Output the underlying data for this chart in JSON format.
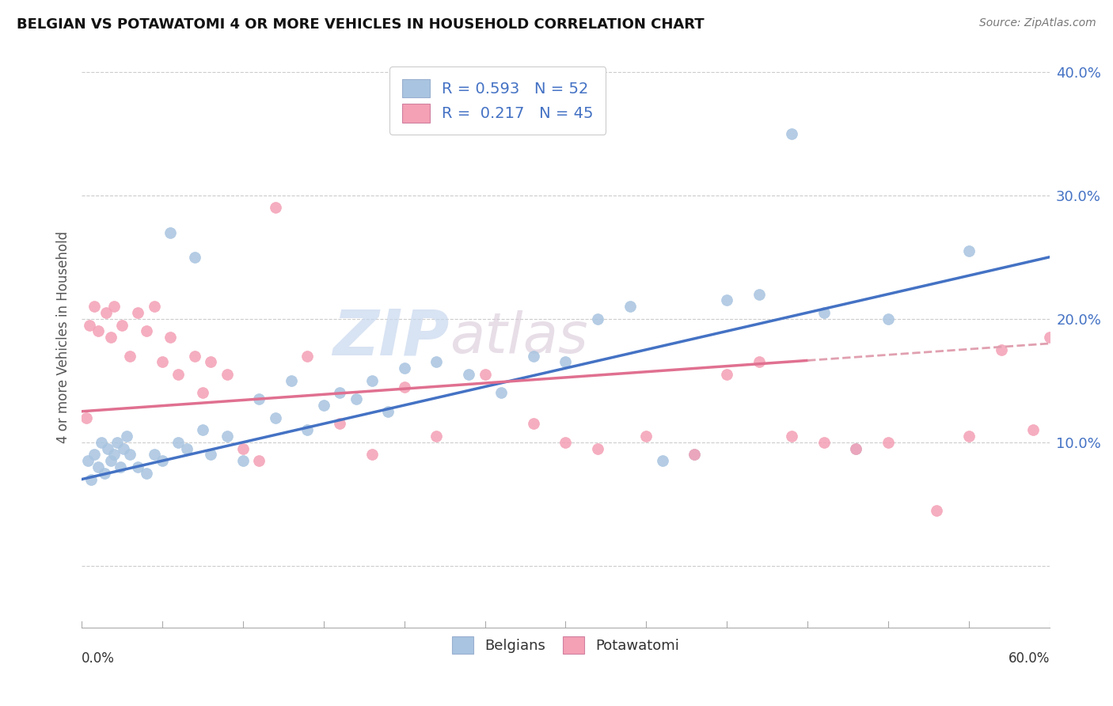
{
  "title": "BELGIAN VS POTAWATOMI 4 OR MORE VEHICLES IN HOUSEHOLD CORRELATION CHART",
  "source_text": "Source: ZipAtlas.com",
  "ylabel": "4 or more Vehicles in Household",
  "watermark_main": "ZIP",
  "watermark_sub": "atlas",
  "xlim": [
    0.0,
    60.0
  ],
  "ylim": [
    -5.0,
    42.0
  ],
  "ytick_vals": [
    0,
    10,
    20,
    30,
    40
  ],
  "ytick_labels": [
    "",
    "10.0%",
    "20.0%",
    "30.0%",
    "40.0%"
  ],
  "legend_line1": "R = 0.593   N = 52",
  "legend_line2": "R =  0.217   N = 45",
  "belgian_color": "#a8c4e0",
  "potawatomi_color": "#f4a0b5",
  "belgian_line_color": "#4472c4",
  "potawatomi_line_color": "#e07090",
  "potawatomi_dash_color": "#e0a0b0",
  "legend_text_color": "#4472c4",
  "background_color": "#ffffff",
  "grid_color": "#cccccc",
  "belgian_line_y0": 7.0,
  "belgian_line_y60": 25.0,
  "potawatomi_line_y0": 12.5,
  "potawatomi_line_y60": 18.0,
  "belgians_x": [
    0.4,
    0.6,
    0.8,
    1.0,
    1.2,
    1.4,
    1.6,
    1.8,
    2.0,
    2.2,
    2.4,
    2.6,
    2.8,
    3.0,
    3.5,
    4.0,
    4.5,
    5.0,
    5.5,
    6.0,
    6.5,
    7.0,
    7.5,
    8.0,
    9.0,
    10.0,
    11.0,
    12.0,
    13.0,
    14.0,
    15.0,
    16.0,
    17.0,
    18.0,
    19.0,
    20.0,
    22.0,
    24.0,
    26.0,
    28.0,
    30.0,
    32.0,
    34.0,
    36.0,
    38.0,
    40.0,
    42.0,
    44.0,
    46.0,
    48.0,
    50.0,
    55.0
  ],
  "belgians_y": [
    8.5,
    7.0,
    9.0,
    8.0,
    10.0,
    7.5,
    9.5,
    8.5,
    9.0,
    10.0,
    8.0,
    9.5,
    10.5,
    9.0,
    8.0,
    7.5,
    9.0,
    8.5,
    27.0,
    10.0,
    9.5,
    25.0,
    11.0,
    9.0,
    10.5,
    8.5,
    13.5,
    12.0,
    15.0,
    11.0,
    13.0,
    14.0,
    13.5,
    15.0,
    12.5,
    16.0,
    16.5,
    15.5,
    14.0,
    17.0,
    16.5,
    20.0,
    21.0,
    8.5,
    9.0,
    21.5,
    22.0,
    35.0,
    20.5,
    9.5,
    20.0,
    25.5
  ],
  "potawatomi_x": [
    0.3,
    0.5,
    0.8,
    1.0,
    1.5,
    1.8,
    2.0,
    2.5,
    3.0,
    3.5,
    4.0,
    4.5,
    5.0,
    5.5,
    6.0,
    7.0,
    7.5,
    8.0,
    9.0,
    10.0,
    11.0,
    12.0,
    14.0,
    16.0,
    18.0,
    20.0,
    22.0,
    25.0,
    28.0,
    30.0,
    32.0,
    35.0,
    38.0,
    40.0,
    42.0,
    44.0,
    46.0,
    48.0,
    50.0,
    53.0,
    55.0,
    57.0,
    59.0,
    60.0,
    61.0
  ],
  "potawatomi_y": [
    12.0,
    19.5,
    21.0,
    19.0,
    20.5,
    18.5,
    21.0,
    19.5,
    17.0,
    20.5,
    19.0,
    21.0,
    16.5,
    18.5,
    15.5,
    17.0,
    14.0,
    16.5,
    15.5,
    9.5,
    8.5,
    29.0,
    17.0,
    11.5,
    9.0,
    14.5,
    10.5,
    15.5,
    11.5,
    10.0,
    9.5,
    10.5,
    9.0,
    15.5,
    16.5,
    10.5,
    10.0,
    9.5,
    10.0,
    4.5,
    10.5,
    17.5,
    11.0,
    18.5,
    19.0
  ]
}
